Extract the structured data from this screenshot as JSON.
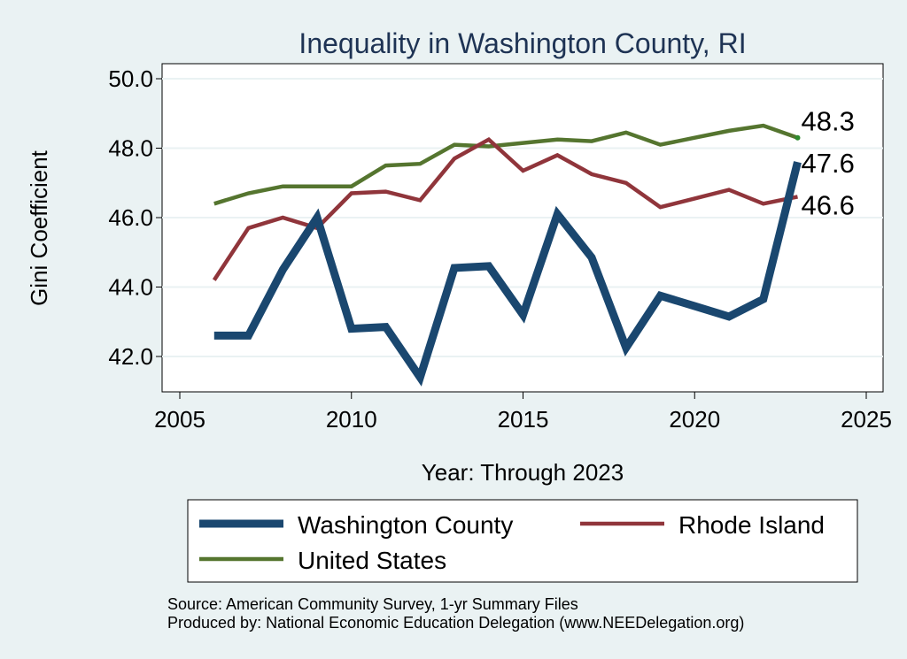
{
  "chart_data": {
    "type": "line",
    "title": "Inequality in Washington County, RI",
    "xlabel": "Year: Through 2023",
    "ylabel": "Gini Coefficient",
    "xlim": [
      2005,
      2025
    ],
    "ylim": [
      41.0,
      50.5
    ],
    "x_ticks": [
      2005,
      2010,
      2015,
      2020,
      2025
    ],
    "y_ticks": [
      "42.0",
      "44.0",
      "46.0",
      "48.0",
      "50.0"
    ],
    "grid": true,
    "legend_position": "bottom",
    "x": [
      2006,
      2007,
      2008,
      2009,
      2010,
      2011,
      2012,
      2013,
      2014,
      2015,
      2016,
      2017,
      2018,
      2019,
      2020,
      2021,
      2022,
      2023
    ],
    "series": [
      {
        "name": "Washington County",
        "color": "#1a476f",
        "values": [
          42.6,
          42.6,
          44.5,
          46.0,
          42.8,
          42.85,
          41.4,
          44.55,
          44.6,
          43.2,
          46.1,
          44.85,
          42.25,
          43.75,
          43.45,
          43.15,
          43.65,
          47.6
        ],
        "end_label": "47.6"
      },
      {
        "name": "Rhode Island",
        "color": "#90353b",
        "values": [
          44.2,
          45.7,
          46.0,
          45.7,
          46.7,
          46.75,
          46.5,
          47.7,
          48.25,
          47.35,
          47.8,
          47.25,
          47.0,
          46.3,
          46.55,
          46.8,
          46.4,
          46.6
        ],
        "end_label": "46.6"
      },
      {
        "name": "United States",
        "color": "#55752f",
        "values": [
          46.4,
          46.7,
          46.9,
          46.9,
          46.9,
          47.5,
          47.55,
          48.1,
          48.05,
          48.15,
          48.25,
          48.2,
          48.45,
          48.1,
          48.3,
          48.5,
          48.65,
          48.3
        ],
        "end_label": "48.3"
      }
    ],
    "notes": [
      "Source: American Community Survey, 1-yr Summary Files",
      "Produced by: National Economic Education Delegation (www.NEEDelegation.org)"
    ]
  }
}
